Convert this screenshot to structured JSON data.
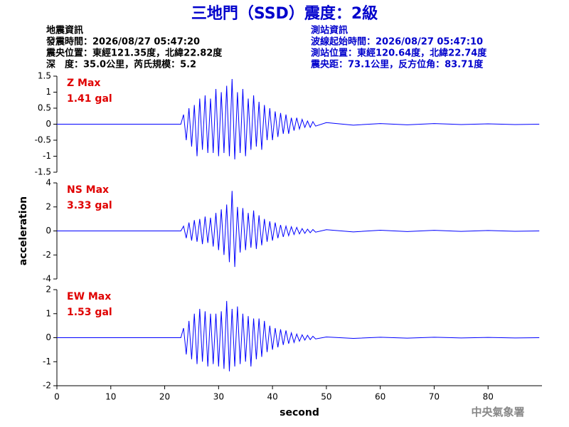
{
  "header": {
    "title": "三地門（SSD）震度：2級",
    "left": [
      "地震資訊",
      "發震時間：2026/08/27 05:47:20",
      "震央位置：東經121.35度，北緯22.82度",
      "深　度：35.0公里，芮氏規模：5.2"
    ],
    "right": [
      "測站資訊",
      "波線起始時間：2026/08/27 05:47:10",
      "測站位置：東經120.64度，北緯22.74度",
      "震央距：73.1公里，反方位角：83.71度"
    ],
    "footer": "中央氣象署"
  },
  "chart_data": [
    {
      "type": "line",
      "annotation": [
        "Z Max",
        "1.41 gal"
      ],
      "color": "#0000ff",
      "xlim": [
        0,
        90
      ],
      "ylim": [
        -1.5,
        1.5
      ],
      "yticks": [
        -1.5,
        -1,
        -0.5,
        0,
        0.5,
        1,
        1.5
      ],
      "x": [
        0,
        23,
        23.5,
        24,
        24.5,
        25,
        25.5,
        26,
        26.5,
        27,
        27.5,
        28,
        28.5,
        29,
        29.5,
        30,
        30.5,
        31,
        31.5,
        32,
        32.5,
        33,
        33.5,
        34,
        34.5,
        35,
        35.5,
        36,
        36.5,
        37,
        37.5,
        38,
        38.5,
        39,
        39.5,
        40,
        40.5,
        41,
        41.5,
        42,
        42.5,
        43,
        43.5,
        44,
        44.5,
        45,
        45.5,
        46,
        46.5,
        47,
        47.5,
        48,
        50,
        55,
        60,
        65,
        70,
        75,
        80,
        85,
        89.5
      ],
      "values": [
        0,
        0,
        0.3,
        -0.5,
        0.5,
        -0.7,
        0.6,
        -1.0,
        0.8,
        -0.8,
        0.9,
        -0.9,
        0.8,
        -0.9,
        1.1,
        -1.0,
        1.0,
        -0.9,
        1.2,
        -1.0,
        1.41,
        -1.1,
        1.0,
        -0.9,
        1.1,
        -1.0,
        0.8,
        -0.8,
        0.9,
        -0.7,
        0.7,
        -0.8,
        0.6,
        -0.5,
        0.5,
        -0.5,
        0.4,
        -0.4,
        0.35,
        -0.3,
        0.3,
        -0.3,
        0.2,
        -0.2,
        0.2,
        -0.15,
        0.15,
        -0.1,
        0.1,
        -0.1,
        0.08,
        -0.06,
        0.05,
        -0.03,
        0.02,
        -0.02,
        0.02,
        -0.01,
        0.01,
        -0.01,
        0
      ]
    },
    {
      "type": "line",
      "annotation": [
        "NS Max",
        "3.33 gal"
      ],
      "ylabel": "acceleration",
      "color": "#0000ff",
      "xlim": [
        0,
        90
      ],
      "ylim": [
        -4,
        4
      ],
      "yticks": [
        -4,
        -2,
        0,
        2,
        4
      ],
      "x": [
        0,
        23,
        23.5,
        24,
        24.5,
        25,
        25.5,
        26,
        26.5,
        27,
        27.5,
        28,
        28.5,
        29,
        29.5,
        30,
        30.5,
        31,
        31.5,
        32,
        32.5,
        33,
        33.5,
        34,
        34.5,
        35,
        35.5,
        36,
        36.5,
        37,
        37.5,
        38,
        38.5,
        39,
        39.5,
        40,
        40.5,
        41,
        41.5,
        42,
        42.5,
        43,
        43.5,
        44,
        44.5,
        45,
        45.5,
        46,
        46.5,
        47,
        47.5,
        48,
        50,
        55,
        60,
        65,
        70,
        75,
        80,
        85,
        89.5
      ],
      "values": [
        0,
        0,
        0.4,
        -0.6,
        0.7,
        -0.8,
        0.9,
        -0.9,
        1.0,
        -1.1,
        1.2,
        -1.0,
        1.1,
        -1.3,
        1.5,
        -1.6,
        1.8,
        -2.0,
        2.2,
        -2.6,
        3.33,
        -3.0,
        2.0,
        -1.8,
        1.9,
        -1.6,
        1.5,
        -1.4,
        1.7,
        -1.5,
        1.3,
        -1.2,
        1.0,
        -0.9,
        0.8,
        -0.8,
        0.7,
        -0.6,
        0.5,
        -0.5,
        0.4,
        -0.4,
        0.35,
        -0.3,
        0.3,
        -0.25,
        0.2,
        -0.2,
        0.15,
        -0.15,
        0.12,
        -0.1,
        0.1,
        -0.08,
        0.06,
        -0.05,
        0.05,
        -0.04,
        0.04,
        -0.03,
        0
      ]
    },
    {
      "type": "line",
      "annotation": [
        "EW Max",
        "1.53 gal"
      ],
      "xlabel": "second",
      "color": "#0000ff",
      "xlim": [
        0,
        90
      ],
      "ylim": [
        -2,
        2
      ],
      "yticks": [
        -2,
        -1,
        0,
        1,
        2
      ],
      "xticks": [
        0,
        10,
        20,
        30,
        40,
        50,
        60,
        70,
        80
      ],
      "x": [
        0,
        23,
        23.5,
        24,
        24.5,
        25,
        25.5,
        26,
        26.5,
        27,
        27.5,
        28,
        28.5,
        29,
        29.5,
        30,
        30.5,
        31,
        31.5,
        32,
        32.5,
        33,
        33.5,
        34,
        34.5,
        35,
        35.5,
        36,
        36.5,
        37,
        37.5,
        38,
        38.5,
        39,
        39.5,
        40,
        40.5,
        41,
        41.5,
        42,
        42.5,
        43,
        43.5,
        44,
        44.5,
        45,
        45.5,
        46,
        46.5,
        47,
        47.5,
        48,
        50,
        55,
        60,
        65,
        70,
        75,
        80,
        85,
        89.5
      ],
      "values": [
        0,
        0,
        0.4,
        -0.7,
        0.7,
        -0.9,
        1.0,
        -1.1,
        1.2,
        -1.0,
        1.1,
        -1.2,
        1.0,
        -1.1,
        1.0,
        -1.2,
        1.1,
        -1.3,
        1.53,
        -1.4,
        1.2,
        -1.2,
        1.3,
        -1.1,
        1.0,
        -1.0,
        0.9,
        -1.2,
        0.8,
        -0.9,
        0.8,
        -0.8,
        0.7,
        -0.6,
        0.5,
        -0.5,
        0.4,
        -0.4,
        0.35,
        -0.3,
        0.3,
        -0.25,
        0.2,
        -0.2,
        0.15,
        -0.15,
        0.12,
        -0.1,
        0.1,
        -0.08,
        0.06,
        -0.05,
        0.03,
        -0.03,
        0.02,
        -0.02,
        0.02,
        -0.01,
        0.01,
        -0.01,
        0
      ]
    }
  ]
}
